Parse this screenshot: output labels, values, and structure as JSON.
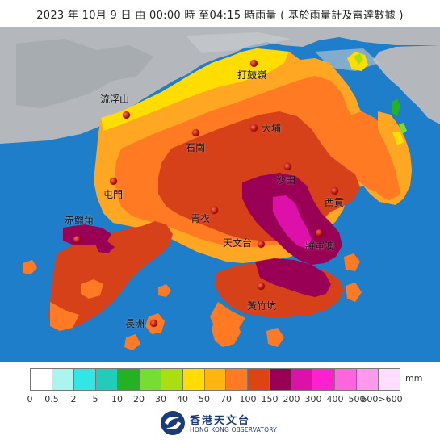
{
  "title": "2023 年  10月  9  日  由 00:00  時 至04:15   時雨量 ( 基於雨量計及雷達數據 )",
  "stations": [
    {
      "id": "ta-kwu-ling",
      "name": "打鼓嶺"
    },
    {
      "id": "lau-fau-shan",
      "name": "流浮山"
    },
    {
      "id": "tai-po",
      "name": "大埔"
    },
    {
      "id": "shek-kong",
      "name": "石崗"
    },
    {
      "id": "tuen-mun",
      "name": "屯門"
    },
    {
      "id": "sha-tin",
      "name": "沙田"
    },
    {
      "id": "sai-kung",
      "name": "西貢"
    },
    {
      "id": "chek-lap-kok",
      "name": "赤鱲角"
    },
    {
      "id": "tsing-yi",
      "name": "青衣"
    },
    {
      "id": "observatory",
      "name": "天文台"
    },
    {
      "id": "tseung-kwan-o",
      "name": "將軍澳"
    },
    {
      "id": "wong-chuk-hang",
      "name": "黃竹坑"
    },
    {
      "id": "cheung-chau",
      "name": "長洲"
    }
  ],
  "legend": {
    "unit": "mm",
    "colors": [
      "#ffffff",
      "#aaf5ee",
      "#33e5e5",
      "#22ccbb",
      "#22b222",
      "#77dd33",
      "#aade11",
      "#ffdd00",
      "#ffb511",
      "#ff7a22",
      "#dd4411",
      "#990055",
      "#dd11aa",
      "#ff22cc",
      "#ff66dd",
      "#ff99ee",
      "#ffddff"
    ],
    "ticks": [
      "0",
      "0.5",
      "2",
      "5",
      "10",
      "20",
      "30",
      "40",
      "50",
      "70",
      "100",
      "150",
      "200",
      "300",
      "400",
      "500",
      "600>600"
    ]
  },
  "logo": {
    "name_cn": "香港天文台",
    "name_en": "HONG KONG OBSERVATORY"
  }
}
